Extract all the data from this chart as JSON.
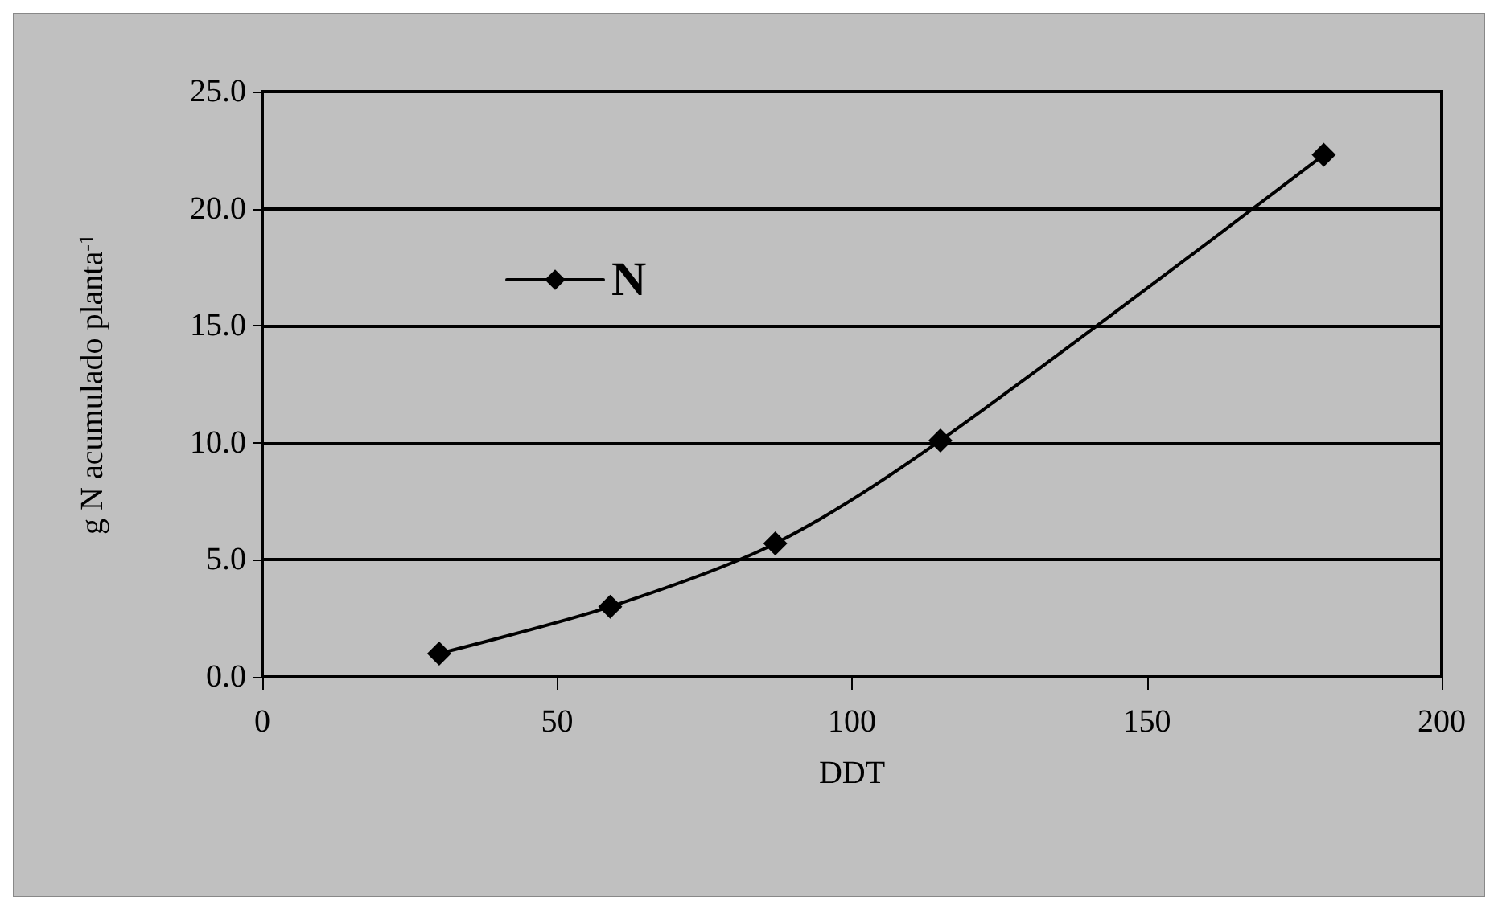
{
  "chart_data": {
    "type": "line",
    "xlabel": "DDT",
    "ylabel": "g N acumulado planta$^{-1}$",
    "x": [
      30,
      59,
      87,
      115,
      180
    ],
    "series": [
      {
        "name": "N",
        "color": "#000000",
        "values": [
          1.0,
          3.0,
          5.7,
          10.1,
          22.3
        ]
      }
    ],
    "xlim": [
      0,
      200
    ],
    "xticks": [
      0,
      50,
      100,
      150,
      200
    ],
    "ylim": [
      0,
      25
    ],
    "yticks": [
      {
        "value": 0,
        "label": "0.0"
      },
      {
        "value": 5,
        "label": "5.0"
      },
      {
        "value": 10,
        "label": "10.0"
      },
      {
        "value": 15,
        "label": "15.0"
      },
      {
        "value": 20,
        "label": "20.0"
      },
      {
        "value": 25,
        "label": "25.0"
      }
    ],
    "grid": "y",
    "legend": "top left",
    "marker": "diamond",
    "line_style": "solid"
  }
}
